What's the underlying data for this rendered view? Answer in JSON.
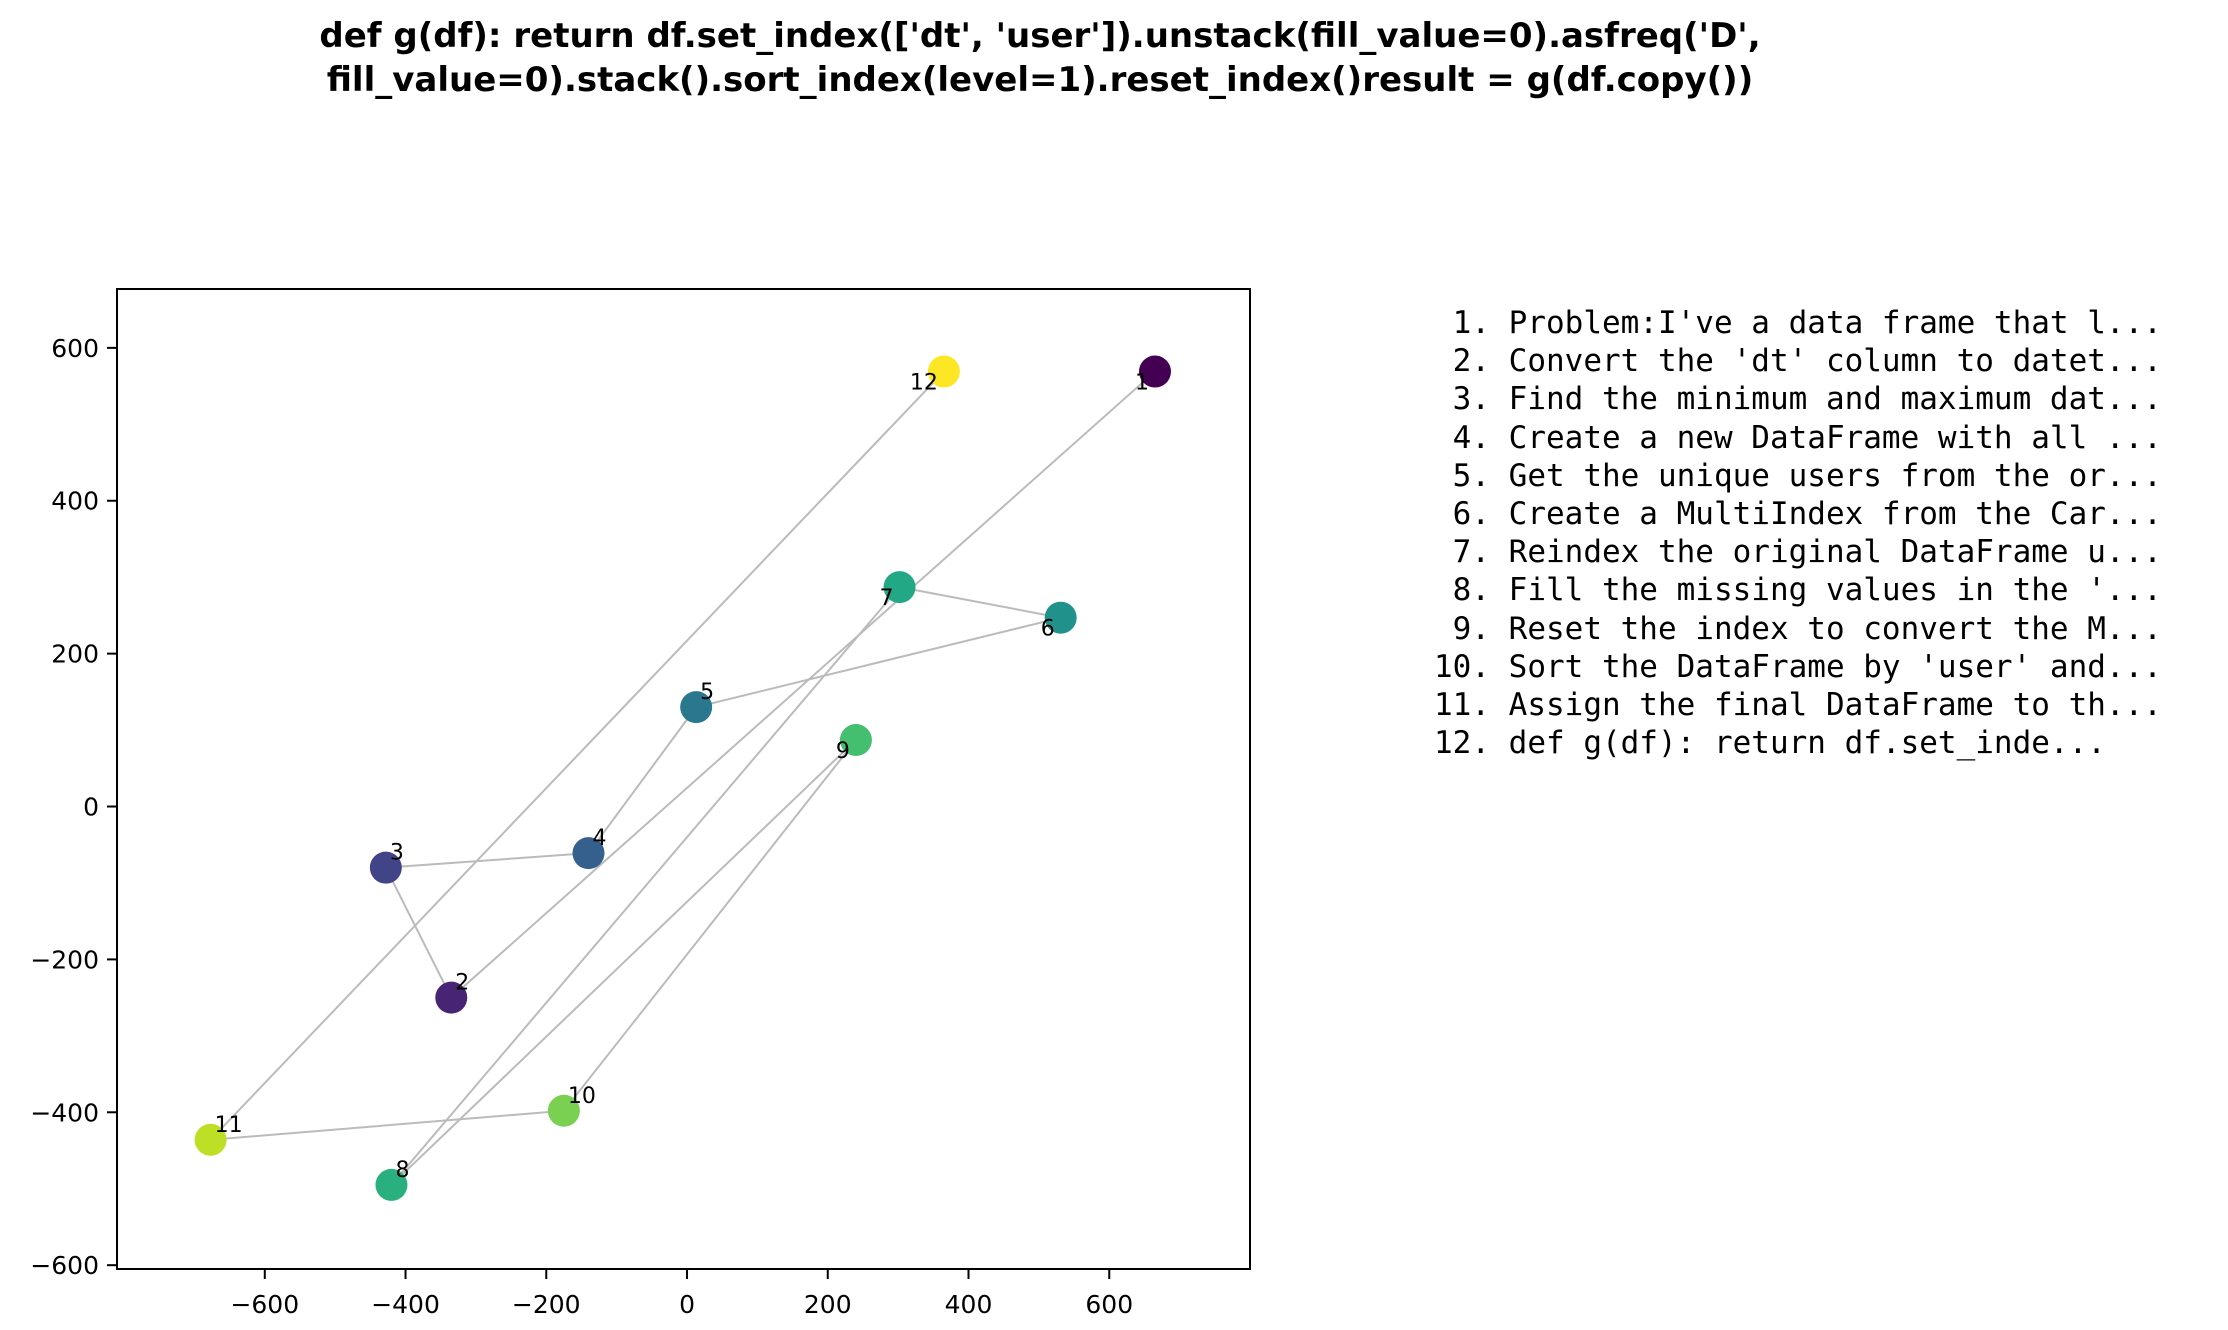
{
  "title_lines": [
    "def g(df):    return df.set_index(['dt', 'user']).unstack(fill_value=0).asfreq('D',",
    "fill_value=0).stack().sort_index(level=1).reset_index()result = g(df.copy())"
  ],
  "chart_data": {
    "type": "scatter",
    "title": "def g(df):    return df.set_index(['dt', 'user']).unstack(fill_value=0).asfreq('D', fill_value=0).stack().sort_index(level=1).reset_index()result = g(df.copy())",
    "xlabel": "",
    "ylabel": "",
    "xlim": [
      -810,
      800
    ],
    "ylim": [
      -605,
      677
    ],
    "xticks": [
      -600,
      -400,
      -200,
      0,
      200,
      400,
      600
    ],
    "yticks": [
      -600,
      -400,
      -200,
      0,
      200,
      400,
      600
    ],
    "xtick_labels": [
      "−600",
      "−400",
      "−200",
      "0",
      "200",
      "400",
      "600"
    ],
    "ytick_labels": [
      "−600",
      "−400",
      "−200",
      "0",
      "200",
      "400",
      "600"
    ],
    "grid": false,
    "colormap": "viridis",
    "connect_in_order": true,
    "line_color": "#bbbbbb",
    "points": [
      {
        "label": "1",
        "x": 665,
        "y": 569,
        "color": "#440154"
      },
      {
        "label": "2",
        "x": -335,
        "y": -250,
        "color": "#482475"
      },
      {
        "label": "3",
        "x": -428,
        "y": -80,
        "color": "#414487"
      },
      {
        "label": "4",
        "x": -140,
        "y": -61,
        "color": "#355f8d"
      },
      {
        "label": "5",
        "x": 13,
        "y": 130,
        "color": "#2a788e"
      },
      {
        "label": "6",
        "x": 531,
        "y": 247,
        "color": "#21918c"
      },
      {
        "label": "7",
        "x": 302,
        "y": 287,
        "color": "#22a884"
      },
      {
        "label": "8",
        "x": -420,
        "y": -495,
        "color": "#2ab07f"
      },
      {
        "label": "9",
        "x": 240,
        "y": 87,
        "color": "#44bf70"
      },
      {
        "label": "10",
        "x": -175,
        "y": -398,
        "color": "#7ad151"
      },
      {
        "label": "11",
        "x": -677,
        "y": -436,
        "color": "#bddf26"
      },
      {
        "label": "12",
        "x": 365,
        "y": 569,
        "color": "#fde725"
      }
    ]
  },
  "steps": [
    {
      "num": "1.",
      "text": "Problem:I've a data frame that l..."
    },
    {
      "num": "2.",
      "text": "Convert the 'dt' column to datet..."
    },
    {
      "num": "3.",
      "text": "Find the minimum and maximum dat..."
    },
    {
      "num": "4.",
      "text": "Create a new DataFrame with all ..."
    },
    {
      "num": "5.",
      "text": "Get the unique users from the or..."
    },
    {
      "num": "6.",
      "text": "Create a MultiIndex from the Car..."
    },
    {
      "num": "7.",
      "text": "Reindex the original DataFrame u..."
    },
    {
      "num": "8.",
      "text": "Fill the missing values in the '..."
    },
    {
      "num": "9.",
      "text": "Reset the index to convert the M..."
    },
    {
      "num": "10.",
      "text": "Sort the DataFrame by 'user' and..."
    },
    {
      "num": "11.",
      "text": "Assign the final DataFrame to th..."
    },
    {
      "num": "12.",
      "text": "def g(df):    return df.set_inde..."
    }
  ]
}
